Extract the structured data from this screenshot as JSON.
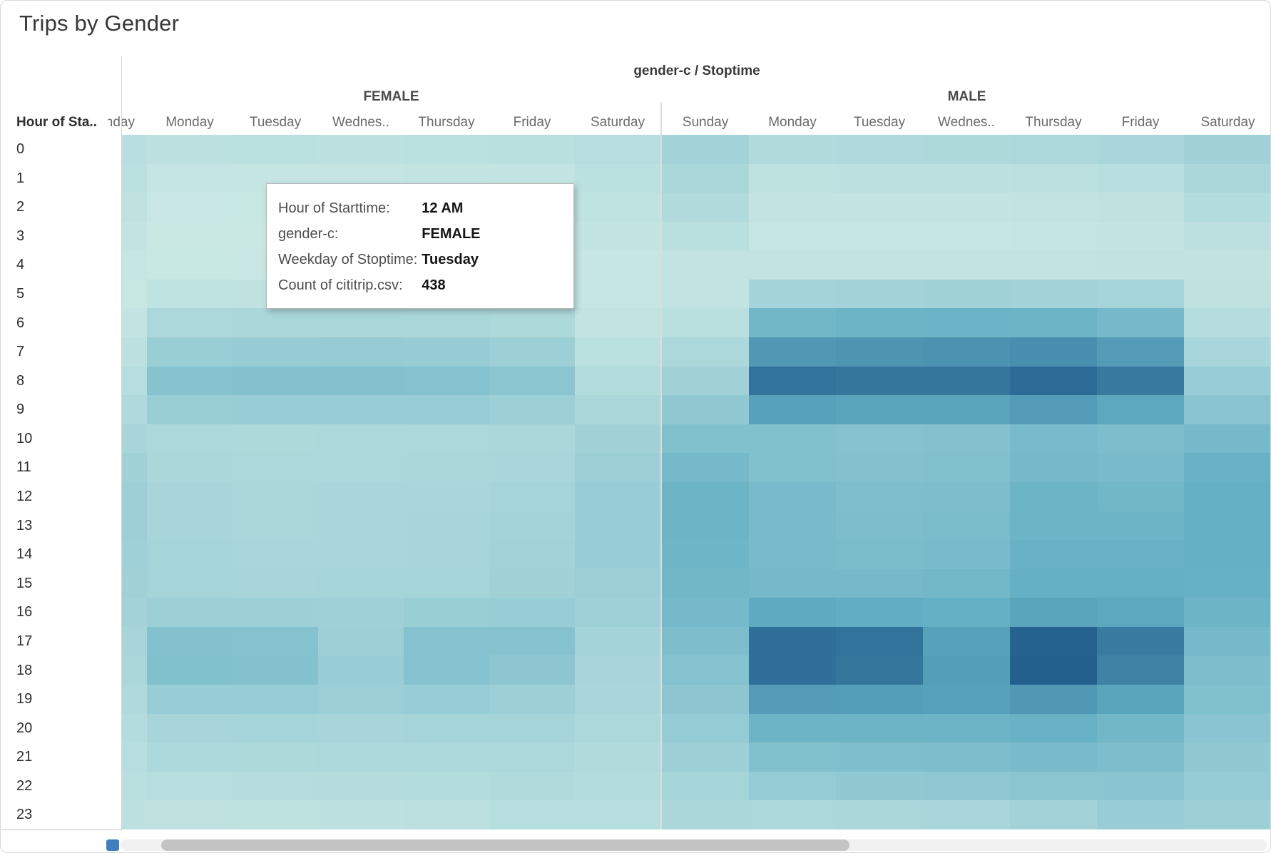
{
  "title": "Trips by Gender",
  "header": {
    "column_field": "gender-c  /  Stoptime",
    "row_field": "Hour of Sta..",
    "genders": [
      "FEMALE",
      "MALE"
    ]
  },
  "hours": [
    0,
    1,
    2,
    3,
    4,
    5,
    6,
    7,
    8,
    9,
    10,
    11,
    12,
    13,
    14,
    15,
    16,
    17,
    18,
    19,
    20,
    21,
    22,
    23
  ],
  "tooltip": {
    "rows": [
      {
        "label": "Hour of Starttime:",
        "value": "12 AM"
      },
      {
        "label": "gender-c:",
        "value": "FEMALE"
      },
      {
        "label": "Weekday of Stoptime:",
        "value": "Tuesday"
      },
      {
        "label": "Count of cititrip.csv:",
        "value": "438"
      }
    ]
  },
  "scrollbar": {
    "accent_color": "#4180c0"
  },
  "chart_data": {
    "type": "heatmap",
    "title": "Trips by Gender",
    "row_axis_label": "Hour of Starttime",
    "rows": [
      0,
      1,
      2,
      3,
      4,
      5,
      6,
      7,
      8,
      9,
      10,
      11,
      12,
      13,
      14,
      15,
      16,
      17,
      18,
      19,
      20,
      21,
      22,
      23
    ],
    "col_groups": [
      "FEMALE",
      "MALE"
    ],
    "columns": [
      "Sunday",
      "Monday",
      "Tuesday",
      "Wednes..",
      "Thursday",
      "Friday",
      "Saturday"
    ],
    "measure": "Count of cititrip.csv",
    "legend_position": "none",
    "grid": false,
    "color_scale": {
      "min": 90,
      "max": 5200,
      "min_color": "#c9e8e4",
      "mid_color": "#63afc4",
      "max_color": "#23608e"
    },
    "values": {
      "FEMALE": [
        [
          520,
          390,
          438,
          420,
          435,
          480,
          560
        ],
        [
          430,
          205,
          210,
          215,
          230,
          265,
          430
        ],
        [
          350,
          125,
          130,
          135,
          150,
          175,
          330
        ],
        [
          250,
          90,
          95,
          100,
          110,
          120,
          230
        ],
        [
          160,
          110,
          115,
          120,
          125,
          130,
          165
        ],
        [
          150,
          330,
          345,
          350,
          340,
          320,
          175
        ],
        [
          255,
          810,
          855,
          870,
          850,
          780,
          300
        ],
        [
          405,
          1260,
          1350,
          1380,
          1350,
          1210,
          455
        ],
        [
          555,
          1760,
          1850,
          1840,
          1800,
          1650,
          650
        ],
        [
          750,
          1260,
          1300,
          1295,
          1280,
          1200,
          850
        ],
        [
          950,
          800,
          780,
          800,
          820,
          855,
          1100
        ],
        [
          1105,
          845,
          805,
          820,
          850,
          905,
          1250
        ],
        [
          1200,
          945,
          855,
          880,
          900,
          1000,
          1305
        ],
        [
          1205,
          950,
          850,
          885,
          920,
          1005,
          1300
        ],
        [
          1150,
          955,
          880,
          900,
          950,
          1050,
          1285
        ],
        [
          1100,
          1000,
          950,
          955,
          1000,
          1100,
          1250
        ],
        [
          1050,
          1250,
          1200,
          1150,
          1255,
          1300,
          1155
        ],
        [
          950,
          1850,
          1800,
          1205,
          1805,
          1750,
          1005
        ],
        [
          855,
          1900,
          1850,
          1300,
          1800,
          1600,
          950
        ],
        [
          750,
          1300,
          1285,
          1250,
          1300,
          1200,
          900
        ],
        [
          650,
          950,
          955,
          950,
          980,
          955,
          800
        ],
        [
          550,
          755,
          780,
          800,
          820,
          805,
          700
        ],
        [
          480,
          550,
          600,
          620,
          650,
          700,
          650
        ],
        [
          405,
          350,
          380,
          400,
          450,
          550,
          550
        ]
      ],
      "MALE": [
        [
          1050,
          700,
          750,
          780,
          820,
          900,
          1100
        ],
        [
          860,
          380,
          400,
          420,
          450,
          520,
          850
        ],
        [
          700,
          250,
          260,
          270,
          290,
          350,
          650
        ],
        [
          500,
          180,
          190,
          200,
          210,
          240,
          450
        ],
        [
          300,
          285,
          290,
          300,
          300,
          310,
          320
        ],
        [
          300,
          1005,
          1050,
          1080,
          1050,
          980,
          350
        ],
        [
          500,
          2300,
          2400,
          2450,
          2400,
          2200,
          600
        ],
        [
          800,
          3400,
          3500,
          3550,
          3700,
          3300,
          900
        ],
        [
          1100,
          4600,
          4500,
          4500,
          4850,
          4400,
          1300
        ],
        [
          1500,
          3100,
          3000,
          3000,
          3300,
          2900,
          1700
        ],
        [
          1900,
          1900,
          1800,
          1850,
          2100,
          2000,
          2200
        ],
        [
          2200,
          1900,
          1850,
          1900,
          2200,
          2100,
          2500
        ],
        [
          2400,
          2100,
          1950,
          2000,
          2400,
          2300,
          2600
        ],
        [
          2400,
          2100,
          2000,
          2050,
          2400,
          2400,
          2600
        ],
        [
          2350,
          2100,
          2050,
          2100,
          2500,
          2500,
          2600
        ],
        [
          2300,
          2200,
          2200,
          2250,
          2600,
          2600,
          2550
        ],
        [
          2200,
          2800,
          2700,
          2600,
          3000,
          2900,
          2400
        ],
        [
          2000,
          4700,
          4600,
          3100,
          5100,
          4300,
          2200
        ],
        [
          1800,
          4700,
          4500,
          3200,
          5200,
          4100,
          2000
        ],
        [
          1600,
          3300,
          3200,
          3100,
          3400,
          3000,
          1900
        ],
        [
          1400,
          2400,
          2400,
          2400,
          2500,
          2300,
          1700
        ],
        [
          1200,
          1900,
          1950,
          2000,
          2100,
          2000,
          1500
        ],
        [
          1000,
          1400,
          1500,
          1550,
          1650,
          1700,
          1400
        ],
        [
          850,
          800,
          850,
          900,
          1050,
          1300,
          1200
        ]
      ]
    }
  }
}
